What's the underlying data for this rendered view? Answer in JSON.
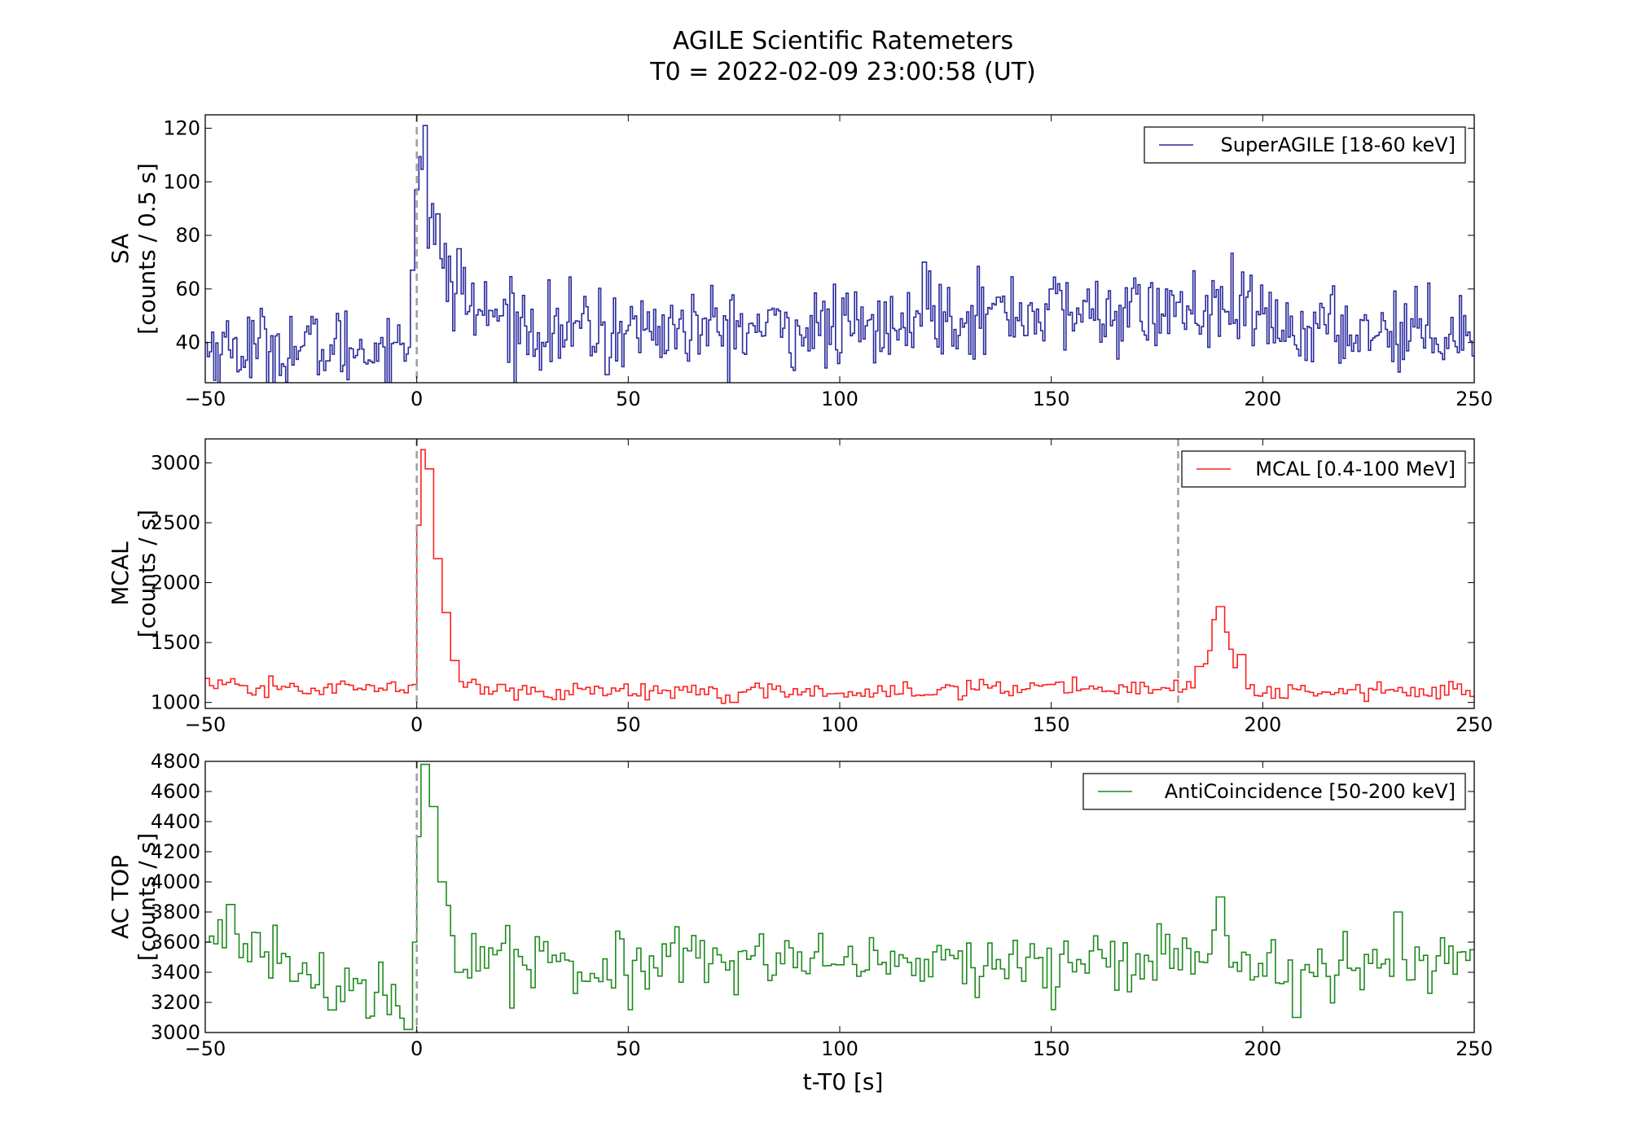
{
  "chart_data": {
    "type": "line",
    "title": "AGILE Scientific Ratemeters",
    "subtitle": "T0 = 2022-02-09 23:00:58 (UT)",
    "xlabel": "t-T0 [s]",
    "xlim": [
      -50,
      250
    ],
    "xticks": [
      -50,
      0,
      50,
      100,
      150,
      200,
      250
    ],
    "xtick_labels": [
      "−50",
      "0",
      "50",
      "100",
      "150",
      "200",
      "250"
    ],
    "panels": [
      {
        "key": "sa",
        "ylabel_line1": "SA",
        "ylabel_line2": "[counts / 0.5 s]",
        "ylim": [
          25,
          125
        ],
        "yticks": [
          40,
          60,
          80,
          100,
          120
        ],
        "ytick_labels": [
          "40",
          "60",
          "80",
          "100",
          "120"
        ],
        "legend": "SuperAGILE [18-60 keV]",
        "legend_position": "top-right",
        "color": "#2b2b9e",
        "bin_width": 0.5,
        "markers": [
          0
        ],
        "series_summary": {
          "baseline_pre": 38,
          "baseline_post": 48,
          "peak_time": 2.5,
          "peak_value": 121,
          "key_points": [
            [
              -50,
              40
            ],
            [
              -5,
              40
            ],
            [
              -1,
              67
            ],
            [
              0,
              97
            ],
            [
              2,
              121
            ],
            [
              5,
              88
            ],
            [
              10,
              75
            ],
            [
              20,
              50
            ],
            [
              45,
              28
            ],
            [
              120,
              70
            ],
            [
              150,
              60
            ],
            [
              180,
              55
            ],
            [
              250,
              35
            ]
          ]
        }
      },
      {
        "key": "mcal",
        "ylabel_line1": "MCAL",
        "ylabel_line2": "[counts / s]",
        "ylim": [
          950,
          3200
        ],
        "yticks": [
          1000,
          1500,
          2000,
          2500,
          3000
        ],
        "ytick_labels": [
          "1000",
          "1500",
          "2000",
          "2500",
          "3000"
        ],
        "legend": "MCAL [0.4-100 MeV]",
        "legend_position": "top-right",
        "color": "#ff2020",
        "bin_width": 1,
        "markers": [
          0,
          180
        ],
        "series_summary": {
          "baseline": 1100,
          "peak_time": 1.5,
          "peak_value": 3110,
          "second_peak_time": 190,
          "second_peak_value": 1800,
          "key_points": [
            [
              -50,
              1200
            ],
            [
              0,
              1150
            ],
            [
              1,
              2480
            ],
            [
              2,
              3110
            ],
            [
              3,
              2950
            ],
            [
              5,
              2200
            ],
            [
              7,
              1750
            ],
            [
              9,
              1350
            ],
            [
              20,
              1150
            ],
            [
              75,
              1000
            ],
            [
              150,
              1150
            ],
            [
              185,
              1300
            ],
            [
              190,
              1800
            ],
            [
              195,
              1400
            ],
            [
              250,
              1050
            ]
          ]
        }
      },
      {
        "key": "ac",
        "ylabel_line1": "AC TOP",
        "ylabel_line2": "[counts / s]",
        "ylim": [
          3000,
          4800
        ],
        "yticks": [
          3000,
          3200,
          3400,
          3600,
          3800,
          4000,
          4200,
          4400,
          4600,
          4800
        ],
        "ytick_labels": [
          "3000",
          "3200",
          "3400",
          "3600",
          "3800",
          "4000",
          "4200",
          "4400",
          "4600",
          "4800"
        ],
        "legend": "AntiCoincidence [50-200 keV]",
        "legend_position": "top-right",
        "color": "#1e8a1e",
        "bin_width": 1,
        "markers": [
          0
        ],
        "series_summary": {
          "baseline": 3450,
          "peak_time": 1.5,
          "peak_value": 4780,
          "key_points": [
            [
              -50,
              3600
            ],
            [
              -44,
              3850
            ],
            [
              -20,
              3150
            ],
            [
              -2,
              3020
            ],
            [
              0,
              3600
            ],
            [
              1,
              4300
            ],
            [
              2,
              4780
            ],
            [
              4,
              4500
            ],
            [
              6,
              4000
            ],
            [
              10,
              3400
            ],
            [
              100,
              3450
            ],
            [
              190,
              3900
            ],
            [
              208,
              3100
            ],
            [
              232,
              3800
            ],
            [
              250,
              3550
            ]
          ]
        }
      }
    ]
  }
}
